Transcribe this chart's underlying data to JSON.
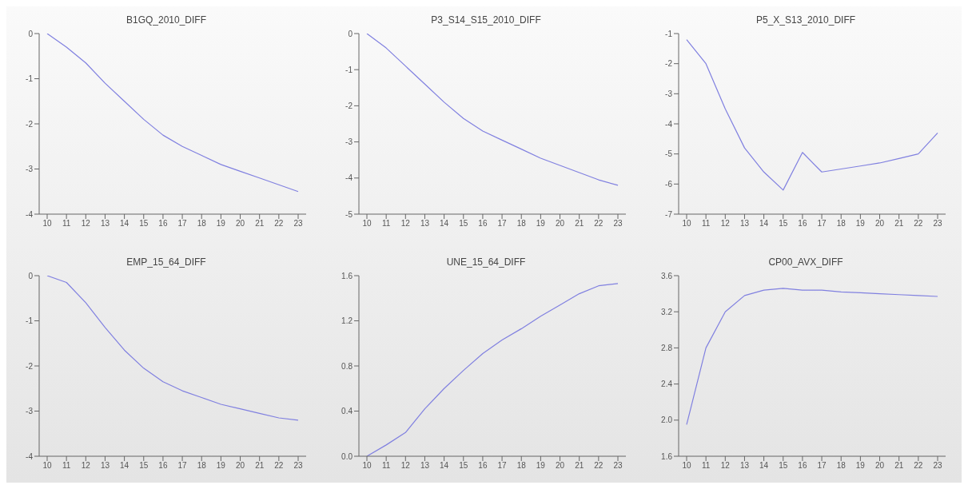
{
  "chart_data": [
    {
      "type": "line",
      "title": "B1GQ_2010_DIFF",
      "categories": [
        "10",
        "11",
        "12",
        "13",
        "14",
        "15",
        "16",
        "17",
        "18",
        "19",
        "20",
        "21",
        "22",
        "23"
      ],
      "color": "#8080e0",
      "ylim": [
        -4,
        0
      ],
      "yticks": [
        -4,
        -3,
        -2,
        -1,
        0
      ],
      "values": [
        0,
        -0.3,
        -0.65,
        -1.1,
        -1.5,
        -1.9,
        -2.25,
        -2.5,
        -2.7,
        -2.9,
        -3.05,
        -3.2,
        -3.35,
        -3.5
      ]
    },
    {
      "type": "line",
      "title": "P3_S14_S15_2010_DIFF",
      "categories": [
        "10",
        "11",
        "12",
        "13",
        "14",
        "15",
        "16",
        "17",
        "18",
        "19",
        "20",
        "21",
        "22",
        "23"
      ],
      "color": "#8080e0",
      "ylim": [
        -5,
        0
      ],
      "yticks": [
        -5,
        -4,
        -3,
        -2,
        -1,
        0
      ],
      "values": [
        0,
        -0.4,
        -0.9,
        -1.4,
        -1.9,
        -2.35,
        -2.7,
        -2.95,
        -3.2,
        -3.45,
        -3.65,
        -3.85,
        -4.05,
        -4.2
      ]
    },
    {
      "type": "line",
      "title": "P5_X_S13_2010_DIFF",
      "categories": [
        "10",
        "11",
        "12",
        "13",
        "14",
        "15",
        "16",
        "17",
        "18",
        "19",
        "20",
        "21",
        "22",
        "23"
      ],
      "color": "#8080e0",
      "ylim": [
        -7,
        -1
      ],
      "yticks": [
        -7,
        -6,
        -5,
        -4,
        -3,
        -2,
        -1
      ],
      "values": [
        -1.2,
        -2.0,
        -3.5,
        -4.8,
        -5.6,
        -6.2,
        -4.95,
        -5.6,
        -5.5,
        -5.4,
        -5.3,
        -5.15,
        -5.0,
        -4.3
      ]
    },
    {
      "type": "line",
      "title": "EMP_15_64_DIFF",
      "categories": [
        "10",
        "11",
        "12",
        "13",
        "14",
        "15",
        "16",
        "17",
        "18",
        "19",
        "20",
        "21",
        "22",
        "23"
      ],
      "color": "#8080e0",
      "ylim": [
        -4,
        0
      ],
      "yticks": [
        -4,
        -3,
        -2,
        -1,
        0
      ],
      "values": [
        0,
        -0.15,
        -0.6,
        -1.15,
        -1.65,
        -2.05,
        -2.35,
        -2.55,
        -2.7,
        -2.85,
        -2.95,
        -3.05,
        -3.15,
        -3.2
      ]
    },
    {
      "type": "line",
      "title": "UNE_15_64_DIFF",
      "categories": [
        "10",
        "11",
        "12",
        "13",
        "14",
        "15",
        "16",
        "17",
        "18",
        "19",
        "20",
        "21",
        "22",
        "23"
      ],
      "color": "#8080e0",
      "ylim": [
        0,
        1.6
      ],
      "yticks": [
        {
          "value": 0,
          "label": "0.0"
        },
        0.4,
        0.8,
        1.2,
        1.6
      ],
      "values": [
        0,
        0.1,
        0.21,
        0.42,
        0.6,
        0.76,
        0.91,
        1.03,
        1.13,
        1.24,
        1.34,
        1.44,
        1.51,
        1.53
      ]
    },
    {
      "type": "line",
      "title": "CP00_AVX_DIFF",
      "categories": [
        "10",
        "11",
        "12",
        "13",
        "14",
        "15",
        "16",
        "17",
        "18",
        "19",
        "20",
        "21",
        "22",
        "23"
      ],
      "color": "#8080e0",
      "ylim": [
        1.6,
        3.6
      ],
      "yticks": [
        1.6,
        {
          "value": 2,
          "label": "2.0"
        },
        2.4,
        2.8,
        3.2,
        3.6
      ],
      "values": [
        1.95,
        2.8,
        3.2,
        3.38,
        3.44,
        3.46,
        3.44,
        3.44,
        3.42,
        3.41,
        3.4,
        3.39,
        3.38,
        3.37
      ]
    }
  ]
}
